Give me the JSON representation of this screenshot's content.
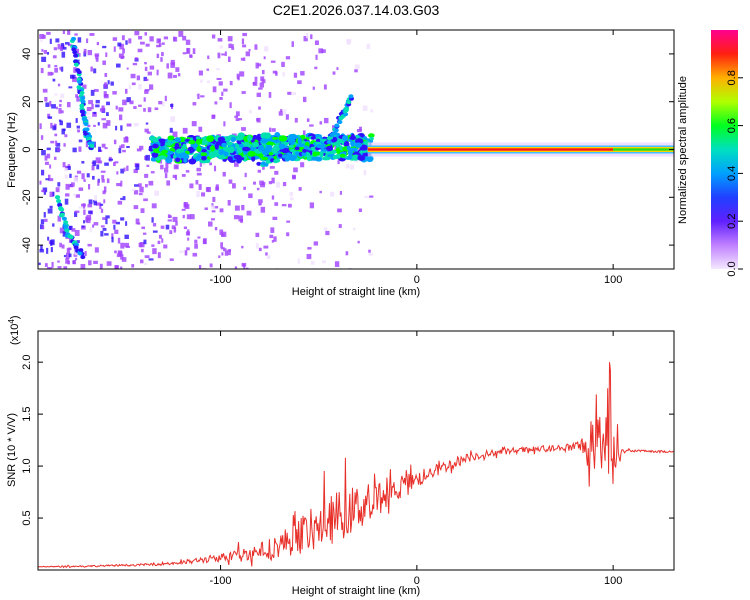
{
  "title": "C2E1.2026.037.14.03.G03",
  "chart_data": [
    {
      "type": "heatmap",
      "name": "spectrogram",
      "xlabel": "Height of straight line (km)",
      "ylabel": "Frequency (Hz)",
      "xlim": [
        -193,
        131
      ],
      "ylim": [
        -50,
        50
      ],
      "xticks": [
        -100,
        0,
        100
      ],
      "yticks": [
        -40,
        -20,
        0,
        20,
        40
      ],
      "colorbar": {
        "label": "Normalized spectral amplitude",
        "range": [
          0.0,
          1.0
        ],
        "ticks": [
          0.0,
          0.2,
          0.4,
          0.6,
          0.8
        ],
        "palette": [
          "#f0e0ff",
          "#a040ff",
          "#3010ff",
          "#00a0ff",
          "#00e0b0",
          "#00ff00",
          "#c0ff00",
          "#ffb000",
          "#ff2000",
          "#ff0080"
        ]
      },
      "carrier_line": {
        "x_range": [
          -25,
          131
        ],
        "frequency": 0,
        "amplitude": 1.0
      },
      "traces": [
        {
          "name": "descending-trace-1",
          "points": [
            [
              -175,
              46
            ],
            [
              -172,
              30
            ],
            [
              -170,
              16
            ],
            [
              -168,
              6
            ],
            [
              -165,
              0
            ]
          ]
        },
        {
          "name": "descending-trace-2",
          "points": [
            [
              -183,
              -20
            ],
            [
              -178,
              -35
            ],
            [
              -170,
              -45
            ]
          ]
        },
        {
          "name": "rising-trace",
          "points": [
            [
              -80,
              -6
            ],
            [
              -60,
              -2
            ],
            [
              -45,
              4
            ],
            [
              -38,
              14
            ],
            [
              -33,
              22
            ]
          ]
        }
      ]
    },
    {
      "type": "line",
      "name": "snr",
      "xlabel": "Height of straight line (km)",
      "ylabel": "SNR (10 * V/V)",
      "multiplier": "(x10",
      "multiplier_exp": "4",
      "xlim": [
        -193,
        131
      ],
      "ylim": [
        0,
        2.3
      ],
      "xticks": [
        -100,
        0,
        100
      ],
      "ytick_labels": [
        "0.5",
        "1.0",
        "1.5",
        "2.0"
      ],
      "yticks": [
        0.5,
        1.0,
        1.5,
        2.0
      ],
      "color": "#e8302a",
      "x": [
        -193,
        -160,
        -140,
        -120,
        -100,
        -80,
        -70,
        -60,
        -50,
        -40,
        -30,
        -20,
        -10,
        0,
        10,
        20,
        30,
        40,
        50,
        60,
        70,
        80,
        85,
        90,
        95,
        97,
        99,
        100,
        102,
        105,
        110,
        120,
        131
      ],
      "y": [
        0.03,
        0.04,
        0.05,
        0.07,
        0.12,
        0.18,
        0.24,
        0.33,
        0.42,
        0.52,
        0.6,
        0.68,
        0.78,
        0.87,
        0.96,
        1.04,
        1.1,
        1.13,
        1.15,
        1.16,
        1.17,
        1.18,
        1.2,
        1.12,
        1.15,
        1.3,
        1.6,
        1.2,
        1.15,
        1.14,
        1.15,
        1.14,
        1.14
      ],
      "noise": [
        0.005,
        0.008,
        0.01,
        0.02,
        0.04,
        0.08,
        0.12,
        0.18,
        0.22,
        0.25,
        0.22,
        0.18,
        0.12,
        0.08,
        0.06,
        0.05,
        0.04,
        0.03,
        0.03,
        0.03,
        0.03,
        0.05,
        0.1,
        0.3,
        0.4,
        0.5,
        0.6,
        0.5,
        0.2,
        0.02,
        0.01,
        0.01,
        0.01
      ]
    }
  ]
}
